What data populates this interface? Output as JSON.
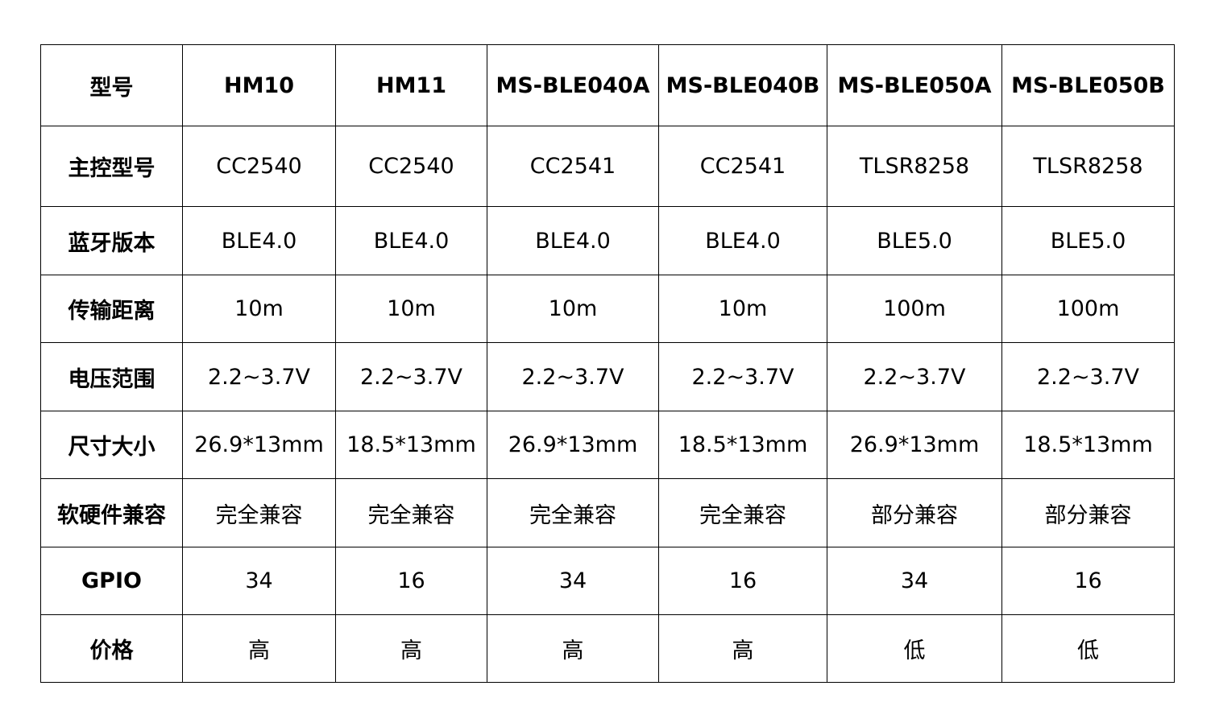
{
  "table": {
    "headers": [
      "型号",
      "HM10",
      "HM11",
      "MS-BLE040A",
      "MS-BLE040B",
      "MS-BLE050A",
      "MS-BLE050B"
    ],
    "rows": [
      {
        "label": "主控型号",
        "cells": [
          "CC2540",
          "CC2540",
          "CC2541",
          "CC2541",
          "TLSR8258",
          "TLSR8258"
        ]
      },
      {
        "label": "蓝牙版本",
        "cells": [
          "BLE4.0",
          "BLE4.0",
          "BLE4.0",
          "BLE4.0",
          "BLE5.0",
          "BLE5.0"
        ]
      },
      {
        "label": "传输距离",
        "cells": [
          "10m",
          "10m",
          "10m",
          "10m",
          "100m",
          "100m"
        ]
      },
      {
        "label": "电压范围",
        "cells": [
          "2.2~3.7V",
          "2.2~3.7V",
          "2.2~3.7V",
          "2.2~3.7V",
          "2.2~3.7V",
          "2.2~3.7V"
        ]
      },
      {
        "label": "尺寸大小",
        "cells": [
          "26.9*13mm",
          "18.5*13mm",
          "26.9*13mm",
          "18.5*13mm",
          "26.9*13mm",
          "18.5*13mm"
        ]
      },
      {
        "label": "软硬件兼容",
        "cells": [
          "完全兼容",
          "完全兼容",
          "完全兼容",
          "完全兼容",
          "部分兼容",
          "部分兼容"
        ]
      },
      {
        "label": "GPIO",
        "cells": [
          "34",
          "16",
          "34",
          "16",
          "34",
          "16"
        ]
      },
      {
        "label": "价格",
        "cells": [
          "高",
          "高",
          "高",
          "高",
          "低",
          "低"
        ]
      }
    ]
  }
}
